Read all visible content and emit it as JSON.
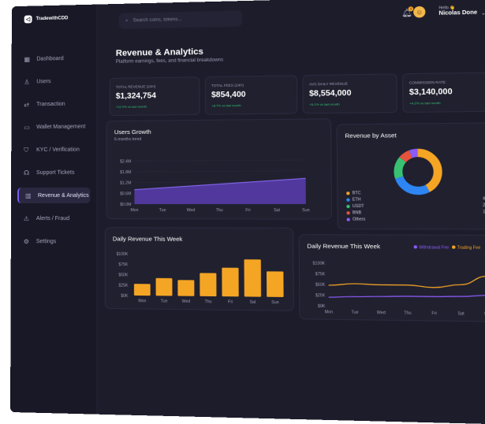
{
  "brand": {
    "name": "TradewithCDD"
  },
  "sidebar": {
    "items": [
      {
        "label": "Dashboard",
        "icon": "dashboard-icon"
      },
      {
        "label": "Users",
        "icon": "users-icon"
      },
      {
        "label": "Transaction",
        "icon": "transaction-icon"
      },
      {
        "label": "Wallet Management",
        "icon": "wallet-icon"
      },
      {
        "label": "KYC / Verification",
        "icon": "shield-icon"
      },
      {
        "label": "Support Tickets",
        "icon": "headset-icon"
      },
      {
        "label": "Revenue & Analytics",
        "icon": "analytics-icon",
        "active": true
      },
      {
        "label": "Alerts / Fraud",
        "icon": "alert-icon"
      },
      {
        "label": "Settings",
        "icon": "gear-icon"
      }
    ]
  },
  "topbar": {
    "search_placeholder": "Search coins, tokens...",
    "notification_count": "3",
    "greeting": "Hello 👋",
    "user_name": "Nicolas Done"
  },
  "page": {
    "title": "Revenue & Analytics",
    "subtitle": "Platform earnings, fees, and financial breakdowns"
  },
  "stats": [
    {
      "label": "TOTAL REVENUE (24H)",
      "value": "$1,324,754",
      "change": "+12.2% vs last month"
    },
    {
      "label": "TOTAL FEES (24H)",
      "value": "$854,400",
      "change": "+8.7% vs last month"
    },
    {
      "label": "AVG DAILY REVENUE",
      "value": "$8,554,000",
      "change": "+5.1% vs last month"
    },
    {
      "label": "COMMISSION RATE",
      "value": "$3,140,000",
      "change": "+4.2% vs last month"
    }
  ],
  "users_growth": {
    "title": "Users Growth",
    "subtitle": "6-months trend",
    "chart_data": {
      "type": "area",
      "categories": [
        "Mon",
        "Tue",
        "Wed",
        "Thu",
        "Fri",
        "Sat",
        "Sun"
      ],
      "values": [
        0.8,
        0.9,
        1.0,
        1.1,
        1.2,
        1.3,
        1.4
      ],
      "y_ticks": [
        "$2.4M",
        "$1.8M",
        "$1.2M",
        "$0.6M",
        "$0.0M"
      ],
      "ylim": [
        0,
        2.4
      ],
      "color": "#5b3db0"
    }
  },
  "revenue_by_asset": {
    "title": "Revenue by Asset",
    "chart_data": {
      "type": "pie",
      "labels": [
        "BTC",
        "ETH",
        "USDT",
        "BNB",
        "Others"
      ],
      "values": [
        42,
        28,
        16,
        8,
        6
      ],
      "display": [
        "42%",
        "28%",
        "16%",
        "8%",
        "6%"
      ],
      "colors": [
        "#f5a524",
        "#2e86f5",
        "#38c172",
        "#e5533d",
        "#8b5cf6"
      ]
    }
  },
  "daily_revenue": {
    "title": "Daily Revenue This Week",
    "chart_data": {
      "type": "bar",
      "categories": [
        "Mon",
        "Tue",
        "Wed",
        "Thu",
        "Fri",
        "Sat",
        "Sun"
      ],
      "values": [
        28,
        42,
        38,
        55,
        68,
        88,
        60
      ],
      "y_ticks": [
        "$100K",
        "$75K",
        "$50K",
        "$25K",
        "$0K"
      ],
      "ylim": [
        0,
        100
      ],
      "color": "#f5a524"
    }
  },
  "daily_revenue_lines": {
    "title": "Daily Revenue This Week",
    "chart_data": {
      "type": "line",
      "categories": [
        "Mon",
        "Tue",
        "Wed",
        "Thu",
        "Fri",
        "Sat",
        "Sun"
      ],
      "y_ticks": [
        "$100K",
        "$75K",
        "$50K",
        "$25K",
        "$0K"
      ],
      "ylim": [
        0,
        100
      ],
      "series": [
        {
          "name": "Withdrawal Fee",
          "values": [
            20,
            22,
            23,
            24,
            24,
            25,
            28
          ],
          "color": "#8b5cf6"
        },
        {
          "name": "Trading Fee",
          "values": [
            48,
            52,
            50,
            50,
            45,
            52,
            72
          ],
          "color": "#f5a524"
        }
      ]
    }
  }
}
